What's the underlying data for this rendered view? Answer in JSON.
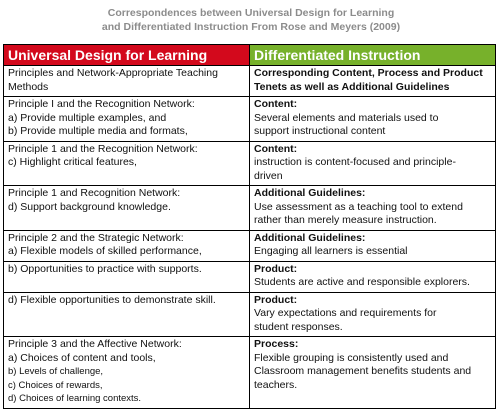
{
  "title": {
    "line1": "Correspondences between Universal Design for Learning",
    "line2": "and Differentiated Instruction From Rose and Meyers (2009)"
  },
  "table": {
    "headers": [
      "Universal Design for Learning",
      "Differentiated Instruction"
    ],
    "colors": {
      "udl_header": "#d3091c",
      "di_header": "#77b12b"
    },
    "rows": [
      {
        "left": [
          "Principles and Network-Appropriate Teaching",
          "Methods"
        ],
        "right": [
          "Corresponding Content, Process and Product",
          "Tenets as well as Additional Guidelines"
        ]
      },
      {
        "left": [
          "Principle I and the Recognition Network:",
          " a) Provide multiple examples, and",
          "b) Provide multiple media and formats,"
        ],
        "right": [
          "Content:",
          "Several elements and materials used to",
          "support instructional content"
        ]
      },
      {
        "left": [
          "Principle 1 and the Recognition Network:",
          "c)  Highlight critical features,"
        ],
        "right": [
          "Content:",
          "instruction is content-focused and principle-",
          "driven"
        ]
      },
      {
        "left": [
          "Principle 1 and Recognition Network:",
          "d)  Support background knowledge."
        ],
        "right": [
          "Additional Guidelines:",
          "Use assessment as a teaching tool to extend",
          "rather than merely measure instruction."
        ]
      },
      {
        "left": [
          "Principle 2 and the Strategic Network:",
          "a) Flexible models of skilled performance,"
        ],
        "right": [
          "Additional Guidelines:",
          "Engaging all learners is essential"
        ]
      },
      {
        "left": [
          "b) Opportunities to practice with supports."
        ],
        "right": [
          "Product:",
          "Students are active and responsible explorers."
        ]
      },
      {
        "left": [
          "d)  Flexible opportunities to demonstrate skill."
        ],
        "right": [
          "Product:",
          "Vary expectations and requirements for",
          "student responses."
        ]
      },
      {
        "left": [
          "Principle 3 and the Affective Network:",
          "a) Choices of content and tools,",
          "b)  Levels of challenge,",
          "c)  Choices of rewards,",
          "d)  Choices of learning contexts."
        ],
        "right": [
          "Process:",
          "Flexible grouping is consistently used and",
          "Classroom management benefits students and",
          "teachers."
        ]
      }
    ]
  }
}
